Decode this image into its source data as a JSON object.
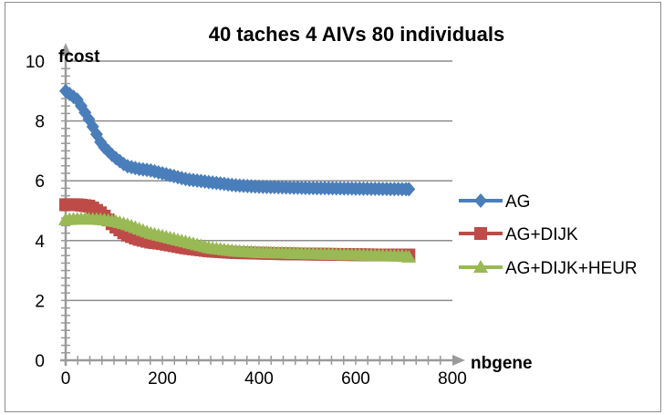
{
  "chart_data": {
    "type": "line",
    "title": "40 taches 4 AIVs 80 individuals",
    "xlabel": "nbgene",
    "ylabel": "fcost",
    "xlim": [
      0,
      800
    ],
    "ylim": [
      0,
      10
    ],
    "xticks": [
      "0",
      "200",
      "400",
      "600",
      "800"
    ],
    "yticks": [
      "0",
      "2",
      "4",
      "6",
      "8",
      "10"
    ],
    "grid": "horizontal",
    "legend": "right",
    "series": [
      {
        "name": "AG",
        "color": "#4a7ebb",
        "marker": "diamond",
        "x": [
          0,
          25,
          50,
          75,
          100,
          125,
          150,
          175,
          200,
          250,
          300,
          350,
          400,
          450,
          500,
          550,
          600,
          650,
          700,
          710
        ],
        "y": [
          9.0,
          8.7,
          8.0,
          7.2,
          6.8,
          6.5,
          6.4,
          6.35,
          6.25,
          6.05,
          5.95,
          5.85,
          5.8,
          5.78,
          5.76,
          5.75,
          5.74,
          5.73,
          5.72,
          5.72
        ]
      },
      {
        "name": "AG+DIJK",
        "color": "#be4b48",
        "marker": "square",
        "x": [
          0,
          25,
          50,
          75,
          100,
          125,
          150,
          175,
          200,
          250,
          300,
          350,
          400,
          450,
          500,
          550,
          600,
          650,
          700,
          710
        ],
        "y": [
          5.2,
          5.2,
          5.15,
          4.9,
          4.5,
          4.2,
          4.05,
          3.95,
          3.9,
          3.75,
          3.65,
          3.6,
          3.58,
          3.56,
          3.55,
          3.54,
          3.53,
          3.52,
          3.52,
          3.52
        ]
      },
      {
        "name": "AG+DIJK+HEUR",
        "color": "#98b954",
        "marker": "triangle",
        "x": [
          0,
          25,
          50,
          75,
          100,
          125,
          150,
          175,
          200,
          250,
          300,
          350,
          400,
          450,
          500,
          550,
          600,
          650,
          700,
          710
        ],
        "y": [
          4.7,
          4.72,
          4.72,
          4.7,
          4.65,
          4.55,
          4.4,
          4.25,
          4.15,
          3.95,
          3.75,
          3.65,
          3.6,
          3.58,
          3.56,
          3.54,
          3.52,
          3.5,
          3.48,
          3.45
        ]
      }
    ]
  }
}
